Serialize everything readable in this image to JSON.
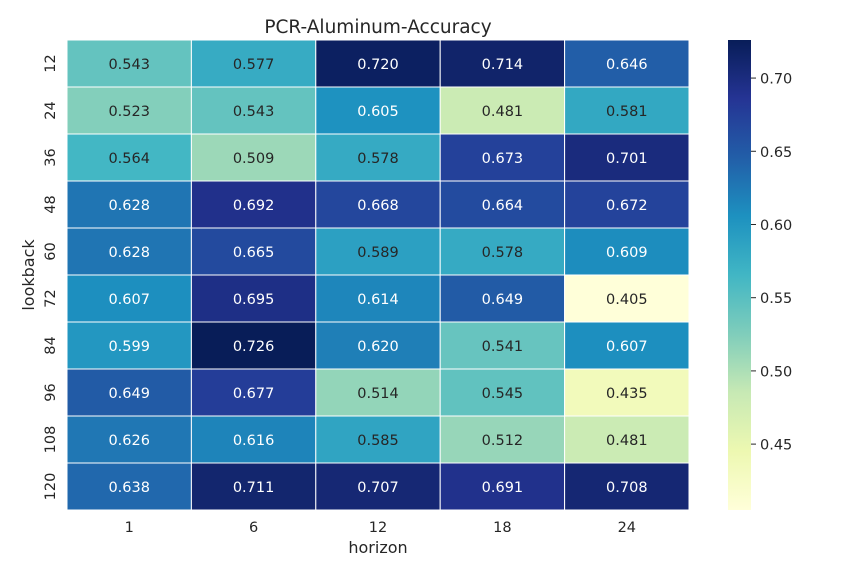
{
  "chart_data": {
    "type": "heatmap",
    "title": "PCR-Aluminum-Accuracy",
    "xlabel": "horizon",
    "ylabel": "lookback",
    "x_categories": [
      "1",
      "6",
      "12",
      "18",
      "24"
    ],
    "y_categories": [
      "12",
      "24",
      "36",
      "48",
      "60",
      "72",
      "84",
      "96",
      "108",
      "120"
    ],
    "values": [
      [
        0.543,
        0.577,
        0.72,
        0.714,
        0.646
      ],
      [
        0.523,
        0.543,
        0.605,
        0.481,
        0.581
      ],
      [
        0.564,
        0.509,
        0.578,
        0.673,
        0.701
      ],
      [
        0.628,
        0.692,
        0.668,
        0.664,
        0.672
      ],
      [
        0.628,
        0.665,
        0.589,
        0.578,
        0.609
      ],
      [
        0.607,
        0.695,
        0.614,
        0.649,
        0.405
      ],
      [
        0.599,
        0.726,
        0.62,
        0.541,
        0.607
      ],
      [
        0.649,
        0.677,
        0.514,
        0.545,
        0.435
      ],
      [
        0.626,
        0.616,
        0.585,
        0.512,
        0.481
      ],
      [
        0.638,
        0.711,
        0.707,
        0.691,
        0.708
      ]
    ],
    "value_format": "3 decimals",
    "colormap": "YlGnBu",
    "color_range": [
      0.405,
      0.726
    ],
    "colorbar_ticks": [
      "0.45",
      "0.50",
      "0.55",
      "0.60",
      "0.65",
      "0.70"
    ],
    "colorbar_tick_values": [
      0.45,
      0.5,
      0.55,
      0.6,
      0.65,
      0.7
    ],
    "colorbar_placement": "right",
    "grid": false
  }
}
